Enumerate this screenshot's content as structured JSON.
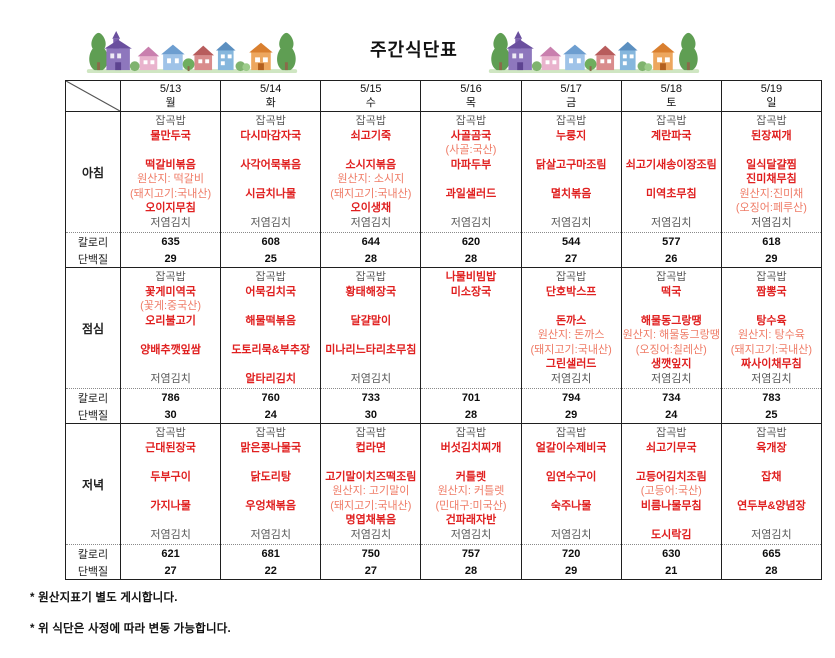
{
  "title": "주간식단표",
  "columns": [
    {
      "date": "5/13",
      "day": "월"
    },
    {
      "date": "5/14",
      "day": "화"
    },
    {
      "date": "5/15",
      "day": "수"
    },
    {
      "date": "5/16",
      "day": "목"
    },
    {
      "date": "5/17",
      "day": "금"
    },
    {
      "date": "5/18",
      "day": "토"
    },
    {
      "date": "5/19",
      "day": "일"
    }
  ],
  "stat_labels": {
    "calories": "칼로리",
    "protein": "단백질"
  },
  "sections": [
    {
      "id": "breakfast",
      "label": "아침",
      "menus": [
        [
          [
            "잡곡밥",
            "plain"
          ],
          [
            "물만두국",
            "dish"
          ],
          [
            "",
            ""
          ],
          [
            "떡갈비볶음",
            "dish"
          ],
          [
            "원산지: 떡갈비",
            "origin"
          ],
          [
            "(돼지고기:국내산)",
            "origin"
          ],
          [
            "오이지무침",
            "dish"
          ],
          [
            "저염김치",
            "plain"
          ]
        ],
        [
          [
            "잡곡밥",
            "plain"
          ],
          [
            "다시마감자국",
            "dish"
          ],
          [
            "",
            ""
          ],
          [
            "사각어묵볶음",
            "dish"
          ],
          [
            "",
            ""
          ],
          [
            "시금치나물",
            "dish"
          ],
          [
            "",
            ""
          ],
          [
            "저염김치",
            "plain"
          ]
        ],
        [
          [
            "잡곡밥",
            "plain"
          ],
          [
            "쇠고기죽",
            "dish"
          ],
          [
            "",
            ""
          ],
          [
            "소시지볶음",
            "dish"
          ],
          [
            "원산지: 소시지",
            "origin"
          ],
          [
            "(돼지고기:국내산)",
            "origin"
          ],
          [
            "오이생채",
            "dish"
          ],
          [
            "저염김치",
            "plain"
          ]
        ],
        [
          [
            "잡곡밥",
            "plain"
          ],
          [
            "사골곰국",
            "dish"
          ],
          [
            "(사골:국산)",
            "origin"
          ],
          [
            "마파두부",
            "dish"
          ],
          [
            "",
            ""
          ],
          [
            "과일샐러드",
            "dish"
          ],
          [
            "",
            ""
          ],
          [
            "저염김치",
            "plain"
          ]
        ],
        [
          [
            "잡곡밥",
            "plain"
          ],
          [
            "누룽지",
            "dish"
          ],
          [
            "",
            ""
          ],
          [
            "닭살고구마조림",
            "dish"
          ],
          [
            "",
            ""
          ],
          [
            "멸치볶음",
            "dish"
          ],
          [
            "",
            ""
          ],
          [
            "저염김치",
            "plain"
          ]
        ],
        [
          [
            "잡곡밥",
            "plain"
          ],
          [
            "계란파국",
            "dish"
          ],
          [
            "",
            ""
          ],
          [
            "쇠고기새송이장조림",
            "dish"
          ],
          [
            "",
            ""
          ],
          [
            "미역초무침",
            "dish"
          ],
          [
            "",
            ""
          ],
          [
            "저염김치",
            "plain"
          ]
        ],
        [
          [
            "잡곡밥",
            "plain"
          ],
          [
            "된장찌개",
            "dish"
          ],
          [
            "",
            ""
          ],
          [
            "일식달걀찜",
            "dish"
          ],
          [
            "진미채무침",
            "dish"
          ],
          [
            "원산지:진미채",
            "origin"
          ],
          [
            "(오징어:페루산)",
            "origin"
          ],
          [
            "저염김치",
            "plain"
          ]
        ]
      ],
      "calories": [
        635,
        608,
        644,
        620,
        544,
        577,
        618
      ],
      "protein": [
        29,
        25,
        28,
        28,
        27,
        26,
        29
      ]
    },
    {
      "id": "lunch",
      "label": "점심",
      "menus": [
        [
          [
            "잡곡밥",
            "plain"
          ],
          [
            "꽃게미역국",
            "dish"
          ],
          [
            "(꽃게:중국산)",
            "origin"
          ],
          [
            "오리불고기",
            "dish"
          ],
          [
            "",
            ""
          ],
          [
            "양배추깻잎쌈",
            "dish"
          ],
          [
            "",
            ""
          ],
          [
            "저염김치",
            "plain"
          ]
        ],
        [
          [
            "잡곡밥",
            "plain"
          ],
          [
            "어묵김치국",
            "dish"
          ],
          [
            "",
            ""
          ],
          [
            "해물떡볶음",
            "dish"
          ],
          [
            "",
            ""
          ],
          [
            "도토리묵&부추장",
            "dish"
          ],
          [
            "",
            ""
          ],
          [
            "알타리김치",
            "dish"
          ]
        ],
        [
          [
            "잡곡밥",
            "plain"
          ],
          [
            "황태해장국",
            "dish"
          ],
          [
            "",
            ""
          ],
          [
            "달걀말이",
            "dish"
          ],
          [
            "",
            ""
          ],
          [
            "미나리느타리초무침",
            "dish"
          ],
          [
            "",
            ""
          ],
          [
            "저염김치",
            "plain"
          ]
        ],
        [
          [
            "나물비빔밥",
            "dish"
          ],
          [
            "미소장국",
            "dish"
          ],
          [
            "",
            ""
          ],
          [
            "",
            ""
          ],
          [
            "",
            ""
          ],
          [
            "",
            ""
          ],
          [
            "",
            ""
          ],
          [
            "",
            ""
          ]
        ],
        [
          [
            "잡곡밥",
            "plain"
          ],
          [
            "단호박스프",
            "dish"
          ],
          [
            "",
            ""
          ],
          [
            "돈까스",
            "dish"
          ],
          [
            "원산지: 돈까스",
            "origin"
          ],
          [
            "(돼지고기:국내산)",
            "origin"
          ],
          [
            "그린샐러드",
            "dish"
          ],
          [
            "저염김치",
            "plain"
          ]
        ],
        [
          [
            "잡곡밥",
            "plain"
          ],
          [
            "떡국",
            "dish"
          ],
          [
            "",
            ""
          ],
          [
            "해물동그랑땡",
            "dish"
          ],
          [
            "원산지: 해물동그랑땡",
            "origin"
          ],
          [
            "(오징어:칠레산)",
            "origin"
          ],
          [
            "생깻잎지",
            "dish"
          ],
          [
            "저염김치",
            "plain"
          ]
        ],
        [
          [
            "잡곡밥",
            "plain"
          ],
          [
            "짬뽕국",
            "dish"
          ],
          [
            "",
            ""
          ],
          [
            "탕수육",
            "dish"
          ],
          [
            "원산지: 탕수육",
            "origin"
          ],
          [
            "(돼지고기:국내산)",
            "origin"
          ],
          [
            "짜사이채무침",
            "dish"
          ],
          [
            "저염김치",
            "plain"
          ]
        ]
      ],
      "calories": [
        786,
        760,
        733,
        701,
        794,
        734,
        783
      ],
      "protein": [
        30,
        24,
        30,
        28,
        29,
        24,
        25
      ]
    },
    {
      "id": "dinner",
      "label": "저녁",
      "menus": [
        [
          [
            "잡곡밥",
            "plain"
          ],
          [
            "근대된장국",
            "dish"
          ],
          [
            "",
            ""
          ],
          [
            "두부구이",
            "dish"
          ],
          [
            "",
            ""
          ],
          [
            "가지나물",
            "dish"
          ],
          [
            "",
            ""
          ],
          [
            "저염김치",
            "plain"
          ]
        ],
        [
          [
            "잡곡밥",
            "plain"
          ],
          [
            "맑은콩나물국",
            "dish"
          ],
          [
            "",
            ""
          ],
          [
            "닭도리탕",
            "dish"
          ],
          [
            "",
            ""
          ],
          [
            "우엉채볶음",
            "dish"
          ],
          [
            "",
            ""
          ],
          [
            "저염김치",
            "plain"
          ]
        ],
        [
          [
            "잡곡밥",
            "plain"
          ],
          [
            "컵라면",
            "dish"
          ],
          [
            "",
            ""
          ],
          [
            "고기말이치즈떡조림",
            "dish"
          ],
          [
            "원산지: 고기말이",
            "origin"
          ],
          [
            "(돼지고기:국내산)",
            "origin"
          ],
          [
            "명엽채볶음",
            "dish"
          ],
          [
            "저염김치",
            "plain"
          ]
        ],
        [
          [
            "잡곡밥",
            "plain"
          ],
          [
            "버섯김치찌개",
            "dish"
          ],
          [
            "",
            ""
          ],
          [
            "커틀렛",
            "dish"
          ],
          [
            "원산지: 커틀렛",
            "origin"
          ],
          [
            "(민대구:미국산)",
            "origin"
          ],
          [
            "건파래자반",
            "dish"
          ],
          [
            "저염김치",
            "plain"
          ]
        ],
        [
          [
            "잡곡밥",
            "plain"
          ],
          [
            "얼갈이수제비국",
            "dish"
          ],
          [
            "",
            ""
          ],
          [
            "임연수구이",
            "dish"
          ],
          [
            "",
            ""
          ],
          [
            "숙주나물",
            "dish"
          ],
          [
            "",
            ""
          ],
          [
            "저염김치",
            "plain"
          ]
        ],
        [
          [
            "잡곡밥",
            "plain"
          ],
          [
            "쇠고기무국",
            "dish"
          ],
          [
            "",
            ""
          ],
          [
            "고등어김치조림",
            "dish"
          ],
          [
            "(고등어:국산)",
            "origin"
          ],
          [
            "비름나물무침",
            "dish"
          ],
          [
            "",
            ""
          ],
          [
            "도시락김",
            "dish"
          ]
        ],
        [
          [
            "잡곡밥",
            "plain"
          ],
          [
            "육개장",
            "dish"
          ],
          [
            "",
            ""
          ],
          [
            "잡채",
            "dish"
          ],
          [
            "",
            ""
          ],
          [
            "연두부&양념장",
            "dish"
          ],
          [
            "",
            ""
          ],
          [
            "저염김치",
            "plain"
          ]
        ]
      ],
      "calories": [
        621,
        681,
        750,
        757,
        720,
        630,
        665
      ],
      "protein": [
        27,
        22,
        27,
        28,
        29,
        21,
        28
      ]
    }
  ],
  "notes": [
    "* 원산지표기 별도 게시합니다.",
    "* 위 식단은 사정에 따라 변동 가능합니다."
  ],
  "colors": {
    "dish_red": "#e02020",
    "origin_red": "#ef7b66",
    "plain_gray": "#595959",
    "border_black": "#1f1f1f"
  }
}
